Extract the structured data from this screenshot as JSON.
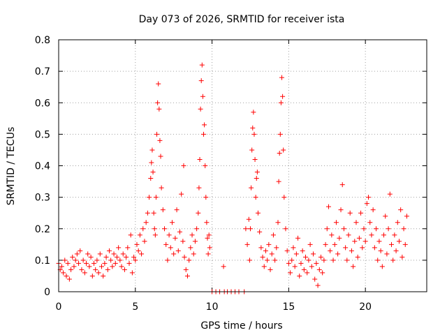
{
  "chart_data": {
    "type": "scatter",
    "title": "Day 073 of 2026, SRMTID for receiver ista",
    "xlabel": "GPS time / hours",
    "ylabel": "SRMTID / TECUs",
    "xlim": [
      0,
      24
    ],
    "ylim": [
      0,
      0.8
    ],
    "x_ticks": [
      0,
      5,
      10,
      15,
      20
    ],
    "x_tick_labels": [
      "0",
      "5",
      "10",
      "15",
      "20"
    ],
    "y_ticks": [
      0,
      0.1,
      0.2,
      0.3,
      0.4,
      0.5,
      0.6,
      0.7,
      0.8
    ],
    "y_tick_labels": [
      "0",
      "0.1",
      "0.2",
      "0.3",
      "0.4",
      "0.5",
      "0.6",
      "0.7",
      "0.8"
    ],
    "grid": true,
    "marker": "plus",
    "color": "#ff0000",
    "series": [
      {
        "name": "SRMTID",
        "points": [
          [
            0.0,
            0.09
          ],
          [
            0.1,
            0.07
          ],
          [
            0.2,
            0.08
          ],
          [
            0.3,
            0.06
          ],
          [
            0.4,
            0.1
          ],
          [
            0.5,
            0.05
          ],
          [
            0.6,
            0.09
          ],
          [
            0.7,
            0.04
          ],
          [
            0.8,
            0.07
          ],
          [
            0.9,
            0.11
          ],
          [
            1.0,
            0.08
          ],
          [
            1.1,
            0.1
          ],
          [
            1.2,
            0.12
          ],
          [
            1.3,
            0.09
          ],
          [
            1.4,
            0.13
          ],
          [
            1.5,
            0.07
          ],
          [
            1.6,
            0.1
          ],
          [
            1.7,
            0.06
          ],
          [
            1.8,
            0.09
          ],
          [
            1.9,
            0.12
          ],
          [
            2.0,
            0.08
          ],
          [
            2.1,
            0.11
          ],
          [
            2.2,
            0.05
          ],
          [
            2.3,
            0.09
          ],
          [
            2.4,
            0.07
          ],
          [
            2.5,
            0.1
          ],
          [
            2.6,
            0.06
          ],
          [
            2.7,
            0.12
          ],
          [
            2.8,
            0.08
          ],
          [
            2.9,
            0.05
          ],
          [
            3.0,
            0.09
          ],
          [
            3.1,
            0.11
          ],
          [
            3.2,
            0.07
          ],
          [
            3.3,
            0.13
          ],
          [
            3.4,
            0.1
          ],
          [
            3.5,
            0.08
          ],
          [
            3.6,
            0.12
          ],
          [
            3.7,
            0.09
          ],
          [
            3.8,
            0.11
          ],
          [
            3.9,
            0.14
          ],
          [
            4.0,
            0.1
          ],
          [
            4.1,
            0.08
          ],
          [
            4.2,
            0.12
          ],
          [
            4.3,
            0.07
          ],
          [
            4.4,
            0.11
          ],
          [
            4.5,
            0.14
          ],
          [
            4.6,
            0.09
          ],
          [
            4.7,
            0.18
          ],
          [
            4.8,
            0.06
          ],
          [
            4.9,
            0.11
          ],
          [
            5.0,
            0.1
          ],
          [
            5.1,
            0.15
          ],
          [
            5.2,
            0.13
          ],
          [
            5.3,
            0.18
          ],
          [
            5.4,
            0.12
          ],
          [
            5.5,
            0.2
          ],
          [
            5.6,
            0.16
          ],
          [
            5.7,
            0.22
          ],
          [
            5.8,
            0.25
          ],
          [
            5.9,
            0.3
          ],
          [
            6.0,
            0.36
          ],
          [
            6.05,
            0.41
          ],
          [
            6.1,
            0.45
          ],
          [
            6.15,
            0.38
          ],
          [
            6.2,
            0.25
          ],
          [
            6.25,
            0.2
          ],
          [
            6.3,
            0.18
          ],
          [
            6.35,
            0.3
          ],
          [
            6.4,
            0.5
          ],
          [
            6.45,
            0.6
          ],
          [
            6.5,
            0.66
          ],
          [
            6.55,
            0.58
          ],
          [
            6.6,
            0.48
          ],
          [
            6.65,
            0.43
          ],
          [
            6.7,
            0.33
          ],
          [
            6.8,
            0.26
          ],
          [
            6.9,
            0.2
          ],
          [
            7.0,
            0.15
          ],
          [
            7.1,
            0.1
          ],
          [
            7.2,
            0.18
          ],
          [
            7.3,
            0.14
          ],
          [
            7.4,
            0.22
          ],
          [
            7.5,
            0.12
          ],
          [
            7.6,
            0.17
          ],
          [
            7.7,
            0.26
          ],
          [
            7.8,
            0.13
          ],
          [
            7.9,
            0.19
          ],
          [
            8.0,
            0.31
          ],
          [
            8.1,
            0.16
          ],
          [
            8.15,
            0.4
          ],
          [
            8.2,
            0.11
          ],
          [
            8.3,
            0.07
          ],
          [
            8.4,
            0.05
          ],
          [
            8.5,
            0.1
          ],
          [
            8.6,
            0.14
          ],
          [
            8.7,
            0.18
          ],
          [
            8.8,
            0.12
          ],
          [
            8.9,
            0.16
          ],
          [
            9.0,
            0.2
          ],
          [
            9.1,
            0.25
          ],
          [
            9.15,
            0.33
          ],
          [
            9.2,
            0.42
          ],
          [
            9.25,
            0.58
          ],
          [
            9.3,
            0.67
          ],
          [
            9.35,
            0.72
          ],
          [
            9.4,
            0.62
          ],
          [
            9.45,
            0.5
          ],
          [
            9.5,
            0.53
          ],
          [
            9.55,
            0.4
          ],
          [
            9.6,
            0.3
          ],
          [
            9.65,
            0.22
          ],
          [
            9.7,
            0.17
          ],
          [
            9.75,
            0.12
          ],
          [
            9.8,
            0.18
          ],
          [
            9.85,
            0.14
          ],
          [
            10.0,
            0.0
          ],
          [
            10.25,
            0.0
          ],
          [
            10.5,
            0.0
          ],
          [
            10.75,
            0.08
          ],
          [
            10.8,
            0.0
          ],
          [
            11.0,
            0.0
          ],
          [
            11.25,
            0.0
          ],
          [
            11.5,
            0.0
          ],
          [
            11.75,
            0.0
          ],
          [
            12.1,
            0.0
          ],
          [
            12.2,
            0.2
          ],
          [
            12.3,
            0.15
          ],
          [
            12.4,
            0.23
          ],
          [
            12.45,
            0.1
          ],
          [
            12.5,
            0.2
          ],
          [
            12.55,
            0.33
          ],
          [
            12.6,
            0.45
          ],
          [
            12.65,
            0.52
          ],
          [
            12.7,
            0.57
          ],
          [
            12.75,
            0.5
          ],
          [
            12.8,
            0.42
          ],
          [
            12.85,
            0.3
          ],
          [
            12.9,
            0.36
          ],
          [
            12.95,
            0.38
          ],
          [
            13.0,
            0.25
          ],
          [
            13.1,
            0.19
          ],
          [
            13.2,
            0.14
          ],
          [
            13.3,
            0.11
          ],
          [
            13.4,
            0.08
          ],
          [
            13.5,
            0.13
          ],
          [
            13.6,
            0.1
          ],
          [
            13.7,
            0.15
          ],
          [
            13.8,
            0.07
          ],
          [
            13.9,
            0.12
          ],
          [
            14.0,
            0.18
          ],
          [
            14.1,
            0.1
          ],
          [
            14.2,
            0.14
          ],
          [
            14.3,
            0.22
          ],
          [
            14.35,
            0.35
          ],
          [
            14.4,
            0.44
          ],
          [
            14.45,
            0.5
          ],
          [
            14.5,
            0.6
          ],
          [
            14.55,
            0.68
          ],
          [
            14.6,
            0.62
          ],
          [
            14.65,
            0.45
          ],
          [
            14.7,
            0.3
          ],
          [
            14.8,
            0.2
          ],
          [
            14.9,
            0.13
          ],
          [
            15.0,
            0.09
          ],
          [
            15.1,
            0.06
          ],
          [
            15.2,
            0.1
          ],
          [
            15.3,
            0.14
          ],
          [
            15.4,
            0.08
          ],
          [
            15.5,
            0.12
          ],
          [
            15.6,
            0.17
          ],
          [
            15.7,
            0.05
          ],
          [
            15.8,
            0.09
          ],
          [
            15.9,
            0.13
          ],
          [
            16.0,
            0.07
          ],
          [
            16.1,
            0.11
          ],
          [
            16.2,
            0.06
          ],
          [
            16.3,
            0.1
          ],
          [
            16.4,
            0.15
          ],
          [
            16.5,
            0.08
          ],
          [
            16.6,
            0.12
          ],
          [
            16.7,
            0.04
          ],
          [
            16.8,
            0.09
          ],
          [
            16.9,
            0.02
          ],
          [
            17.0,
            0.07
          ],
          [
            17.1,
            0.11
          ],
          [
            17.2,
            0.06
          ],
          [
            17.3,
            0.1
          ],
          [
            17.4,
            0.15
          ],
          [
            17.5,
            0.2
          ],
          [
            17.6,
            0.27
          ],
          [
            17.7,
            0.13
          ],
          [
            17.8,
            0.18
          ],
          [
            17.9,
            0.1
          ],
          [
            18.0,
            0.15
          ],
          [
            18.1,
            0.22
          ],
          [
            18.2,
            0.12
          ],
          [
            18.3,
            0.17
          ],
          [
            18.4,
            0.26
          ],
          [
            18.5,
            0.34
          ],
          [
            18.6,
            0.2
          ],
          [
            18.7,
            0.14
          ],
          [
            18.8,
            0.1
          ],
          [
            18.9,
            0.18
          ],
          [
            19.0,
            0.25
          ],
          [
            19.1,
            0.13
          ],
          [
            19.2,
            0.08
          ],
          [
            19.3,
            0.16
          ],
          [
            19.4,
            0.22
          ],
          [
            19.5,
            0.11
          ],
          [
            19.6,
            0.17
          ],
          [
            19.7,
            0.25
          ],
          [
            19.8,
            0.14
          ],
          [
            19.9,
            0.2
          ],
          [
            20.0,
            0.16
          ],
          [
            20.1,
            0.28
          ],
          [
            20.2,
            0.3
          ],
          [
            20.3,
            0.22
          ],
          [
            20.4,
            0.18
          ],
          [
            20.5,
            0.26
          ],
          [
            20.6,
            0.14
          ],
          [
            20.7,
            0.2
          ],
          [
            20.8,
            0.1
          ],
          [
            20.9,
            0.16
          ],
          [
            21.0,
            0.13
          ],
          [
            21.1,
            0.08
          ],
          [
            21.2,
            0.18
          ],
          [
            21.3,
            0.24
          ],
          [
            21.4,
            0.12
          ],
          [
            21.5,
            0.2
          ],
          [
            21.6,
            0.31
          ],
          [
            21.7,
            0.15
          ],
          [
            21.8,
            0.1
          ],
          [
            21.9,
            0.18
          ],
          [
            22.0,
            0.13
          ],
          [
            22.1,
            0.22
          ],
          [
            22.2,
            0.16
          ],
          [
            22.3,
            0.26
          ],
          [
            22.4,
            0.11
          ],
          [
            22.5,
            0.2
          ],
          [
            22.6,
            0.15
          ],
          [
            22.7,
            0.24
          ]
        ]
      }
    ]
  }
}
